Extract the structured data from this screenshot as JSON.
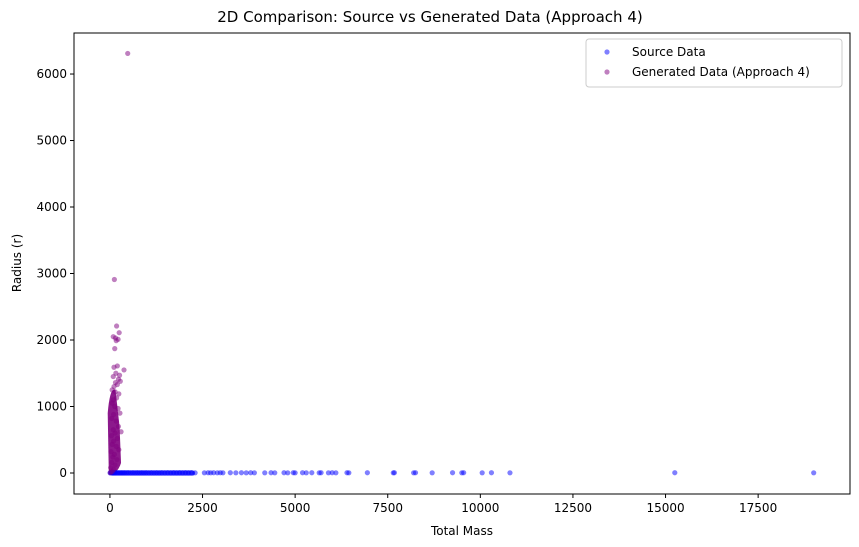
{
  "chart_data": {
    "type": "scatter",
    "title": "2D Comparison: Source vs Generated Data (Approach 4)",
    "xlabel": "Total Mass",
    "ylabel": "Radius (r)",
    "xlim": [
      -970,
      19980
    ],
    "ylim": [
      -316,
      6617
    ],
    "xticks": [
      0,
      2500,
      5000,
      7500,
      10000,
      12500,
      15000,
      17500
    ],
    "yticks": [
      0,
      1000,
      2000,
      3000,
      4000,
      5000,
      6000
    ],
    "grid": false,
    "legend_position": "upper right",
    "series": [
      {
        "name": "Source Data",
        "color": "#0000ff",
        "alpha": 0.5,
        "points": [
          [
            5,
            2
          ],
          [
            20,
            3
          ],
          [
            40,
            4
          ],
          [
            60,
            3
          ],
          [
            80,
            5
          ],
          [
            100,
            4
          ],
          [
            130,
            3
          ],
          [
            160,
            4
          ],
          [
            200,
            3
          ],
          [
            240,
            4
          ],
          [
            280,
            3
          ],
          [
            320,
            4
          ],
          [
            360,
            3
          ],
          [
            400,
            4
          ],
          [
            450,
            3
          ],
          [
            500,
            4
          ],
          [
            560,
            3
          ],
          [
            620,
            4
          ],
          [
            680,
            3
          ],
          [
            740,
            4
          ],
          [
            800,
            3
          ],
          [
            860,
            4
          ],
          [
            920,
            3
          ],
          [
            980,
            4
          ],
          [
            1050,
            3
          ],
          [
            1120,
            4
          ],
          [
            1190,
            3
          ],
          [
            1260,
            4
          ],
          [
            1330,
            3
          ],
          [
            1400,
            4
          ],
          [
            1480,
            3
          ],
          [
            1560,
            4
          ],
          [
            1640,
            3
          ],
          [
            1720,
            4
          ],
          [
            1800,
            3
          ],
          [
            1880,
            4
          ],
          [
            1960,
            3
          ],
          [
            2040,
            4
          ],
          [
            2120,
            3
          ],
          [
            2200,
            4
          ],
          [
            2300,
            3
          ],
          [
            2550,
            3
          ],
          [
            2650,
            4
          ],
          [
            2720,
            3
          ],
          [
            2800,
            4
          ],
          [
            2900,
            3
          ],
          [
            2980,
            4
          ],
          [
            3050,
            3
          ],
          [
            3250,
            4
          ],
          [
            3400,
            3
          ],
          [
            3550,
            4
          ],
          [
            3680,
            3
          ],
          [
            3800,
            4
          ],
          [
            3900,
            3
          ],
          [
            4180,
            3
          ],
          [
            4350,
            4
          ],
          [
            4450,
            3
          ],
          [
            4700,
            4
          ],
          [
            4800,
            3
          ],
          [
            4950,
            4
          ],
          [
            5000,
            3
          ],
          [
            5200,
            4
          ],
          [
            5300,
            3
          ],
          [
            5450,
            4
          ],
          [
            5650,
            3
          ],
          [
            5700,
            4
          ],
          [
            5900,
            3
          ],
          [
            6000,
            4
          ],
          [
            6100,
            3
          ],
          [
            6400,
            4
          ],
          [
            6450,
            3
          ],
          [
            6950,
            4
          ],
          [
            7650,
            3
          ],
          [
            7680,
            4
          ],
          [
            8200,
            3
          ],
          [
            8250,
            4
          ],
          [
            8700,
            3
          ],
          [
            9250,
            4
          ],
          [
            9500,
            3
          ],
          [
            9550,
            4
          ],
          [
            10050,
            3
          ],
          [
            10300,
            4
          ],
          [
            10800,
            3
          ],
          [
            15250,
            4
          ],
          [
            19000,
            3
          ]
        ]
      },
      {
        "name": "Generated Data (Approach 4)",
        "color": "#800080",
        "alpha": 0.5,
        "points": [
          [
            480,
            6310
          ],
          [
            120,
            2910
          ],
          [
            180,
            2210
          ],
          [
            250,
            2110
          ],
          [
            90,
            2050
          ],
          [
            150,
            2030
          ],
          [
            220,
            2010
          ],
          [
            170,
            1990
          ],
          [
            130,
            1870
          ],
          [
            380,
            1550
          ],
          [
            200,
            1610
          ],
          [
            110,
            1590
          ],
          [
            160,
            1500
          ],
          [
            260,
            1470
          ],
          [
            90,
            1450
          ],
          [
            230,
            1410
          ],
          [
            280,
            1380
          ],
          [
            150,
            1360
          ],
          [
            110,
            1300
          ],
          [
            200,
            1330
          ],
          [
            60,
            1250
          ],
          [
            140,
            1220
          ],
          [
            240,
            1190
          ],
          [
            180,
            1130
          ],
          [
            90,
            1100
          ],
          [
            60,
            1050
          ],
          [
            130,
            1000
          ],
          [
            220,
            970
          ],
          [
            270,
            900
          ],
          [
            100,
            880
          ],
          [
            50,
            820
          ],
          [
            170,
            780
          ],
          [
            230,
            700
          ],
          [
            90,
            650
          ],
          [
            300,
            620
          ],
          [
            140,
            600
          ],
          [
            40,
            560
          ],
          [
            200,
            520
          ],
          [
            100,
            480
          ],
          [
            60,
            430
          ],
          [
            170,
            400
          ],
          [
            240,
            350
          ],
          [
            30,
            320
          ],
          [
            120,
            280
          ],
          [
            80,
            240
          ],
          [
            190,
            200
          ],
          [
            50,
            160
          ],
          [
            140,
            120
          ],
          [
            20,
            80
          ],
          [
            100,
            50
          ],
          [
            60,
            20
          ],
          [
            10,
            5
          ]
        ]
      }
    ]
  },
  "legend": {
    "items": [
      {
        "label": "Source Data",
        "color": "#0000ff"
      },
      {
        "label": "Generated Data (Approach 4)",
        "color": "#800080"
      }
    ]
  },
  "labels": {
    "title": "2D Comparison: Source vs Generated Data (Approach 4)",
    "xlabel": "Total Mass",
    "ylabel": "Radius (r)",
    "xticks": [
      "0",
      "2500",
      "5000",
      "7500",
      "10000",
      "12500",
      "15000",
      "17500"
    ],
    "yticks": [
      "0",
      "1000",
      "2000",
      "3000",
      "4000",
      "5000",
      "6000"
    ]
  }
}
